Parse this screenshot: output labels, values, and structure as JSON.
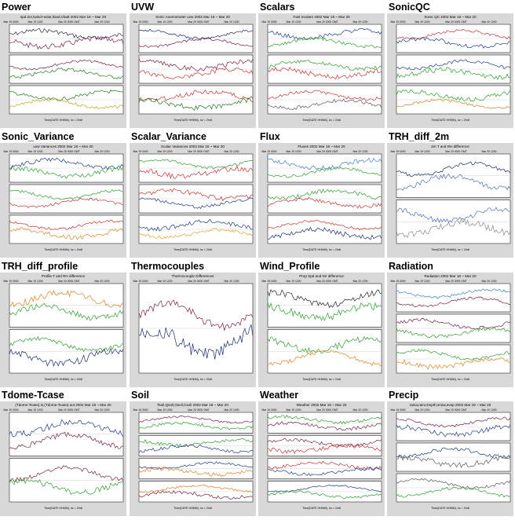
{
  "thumbnails": [
    {
      "label": "Power",
      "title": "spd.2m,twind+solar,Iload,Vbatt 2002 Mar 18 ~ Mar 20",
      "nplots": 3,
      "dates": [
        "Mar 19 0000",
        "Mar 19 1200",
        "Mar 20 0000 GMT",
        "Mar 20 1200"
      ],
      "xlabel": "Time(DATE HHMM), hz = 2hr8",
      "colors": [
        "#222244",
        "#7a1e4a",
        "#1a7a1a",
        "#c0a020"
      ]
    },
    {
      "label": "UVW",
      "title": "Sonic Anemometer uvw 2002 Mar 18 ~ Mar 20",
      "nplots": 3,
      "dates": [
        "Mar 19 0000",
        "Mar 19 1200",
        "Mar 20 0000 GMT",
        "Mar 20 1200"
      ],
      "xlabel": "Time(DATE HHMM), hz = 2hr8",
      "colors": [
        "#1a2a6a",
        "#7a1e4a",
        "#c83030",
        "#1a7a1a"
      ]
    },
    {
      "label": "Scalars",
      "title": "Fast Scalars 2002 Mar 18 ~ Mar 20",
      "nplots": 3,
      "dates": [
        "Mar 19 0000",
        "Mar 19 1200",
        "Mar 20 0000 GMT",
        "Mar 20 1200"
      ],
      "xlabel": "Time(DATE HHMM), hz = 2hr8",
      "colors": [
        "#1a3a8a",
        "#2aa02a",
        "#c83030",
        "#555555"
      ]
    },
    {
      "label": "SonicQC",
      "title": "Sonic QC 2002 Mar 18 ~ Mar 20",
      "nplots": 3,
      "dates": [
        "Mar 19 0000",
        "Mar 19 1200",
        "Mar 20 0000 GMT",
        "Mar 20 1200"
      ],
      "xlabel": "Time(DATE HHMM), hz = 2hr8",
      "colors": [
        "#c83030",
        "#1a3a8a",
        "#2aa02a",
        "#d08020"
      ]
    },
    {
      "label": "Sonic_Variance",
      "title": "uvw Variances 2002 Mar 18 ~ Mar 20",
      "nplots": 3,
      "dates": [
        "Mar 19 0000",
        "Mar 19 1200",
        "Mar 20 0000 GMT",
        "Mar 20 1200"
      ],
      "xlabel": "Time(DATE HHMM), hz = 2hr8",
      "colors": [
        "#1a3a8a",
        "#2aa02a",
        "#c83030",
        "#e08020"
      ]
    },
    {
      "label": "Scalar_Variance",
      "title": "Scalar Variances 2002 Mar 18 ~ Mar 20",
      "nplots": 3,
      "dates": [
        "Mar 19 0000",
        "Mar 19 1200",
        "Mar 20 0000 GMT",
        "Mar 20 1200"
      ],
      "xlabel": "Time(DATE HHMM), hz = 2hr8",
      "colors": [
        "#2aa02a",
        "#c83030",
        "#1a3a8a",
        "#e0a020"
      ]
    },
    {
      "label": "Flux",
      "title": "Fluxes 2002 Mar 18 ~ Mar 20",
      "nplots": 3,
      "dates": [
        "Mar 19 0000",
        "Mar 19 1200",
        "Mar 20 0000 GMT",
        "Mar 20 1200"
      ],
      "xlabel": "Time(DATE HHMM), hz = 2hr8",
      "colors": [
        "#3a80d0",
        "#2aa02a",
        "#c83030",
        "#1a2a6a"
      ]
    },
    {
      "label": "TRH_diff_2m",
      "title": "2m T and RH difference",
      "nplots": 2,
      "dates": [
        "Mar 19 0000",
        "Mar 19 1200",
        "Mar 20 0000 GMT",
        "Mar 20 1200"
      ],
      "xlabel": "Time(DATE HHMM), hz = 2hr8",
      "colors": [
        "#1a2a5a",
        "#4a70b0",
        "#888888",
        "#333333"
      ]
    },
    {
      "label": "TRH_diff_profile",
      "title": "Profile T and RH difference",
      "nplots": 2,
      "dates": [
        "Mar 19 0000",
        "Mar 19 1200",
        "Mar 20 0000 GMT",
        "Mar 20 1200"
      ],
      "xlabel": "Time(DATE HHMM), hz = 2hr8",
      "colors": [
        "#e08020",
        "#2aa02a",
        "#1a2a6a",
        "#c83030"
      ]
    },
    {
      "label": "Thermocouples",
      "title": "Thermocouple Differences",
      "nplots": 1,
      "dates": [
        "Mar 19 0000",
        "Mar 19 1200",
        "Mar 20 0000 GMT",
        "Mar 20 1200"
      ],
      "xlabel": "Time(DATE HHMM), hz = 2hr8",
      "colors": [
        "#7a1e4a",
        "#1a2a6a",
        "#c83030",
        "#2aa02a"
      ]
    },
    {
      "label": "Wind_Profile",
      "title": "Prop Spd and Dir difference",
      "nplots": 2,
      "dates": [
        "Mar 19 0000",
        "Mar 19 1200",
        "Mar 20 0000 GMT",
        "Mar 20 1200"
      ],
      "xlabel": "Time(DATE HHMM), hz = 2hr8",
      "colors": [
        "#222222",
        "#2aa02a",
        "#e08020",
        "#c83030"
      ]
    },
    {
      "label": "Radiation",
      "title": "Radiation 2002 Mar 18 ~ Mar 20",
      "nplots": 3,
      "dates": [
        "Mar 19 0000",
        "Mar 19 1200",
        "Mar 20 0000 GMT",
        "Mar 20 1200"
      ],
      "xlabel": "Time(DATE HHMM), hz = 2hr8",
      "colors": [
        "#3a80d0",
        "#7a1e4a",
        "#2aa02a",
        "#e08020"
      ]
    },
    {
      "label": "Tdome-Tcase",
      "title": "(Tdome-Tcase).in,(Tdome-Tcase).out 2002 Mar 18 ~ Mar 20",
      "nplots": 2,
      "dates": [
        "Mar 19 0000",
        "Mar 19 1200",
        "Mar 20 0000 GMT",
        "Mar 20 1200"
      ],
      "xlabel": "Time(DATE HHMM), hz = 2hr8",
      "colors": [
        "#1a3a8a",
        "#7a1e4a",
        "#2aa02a",
        "#c83030"
      ]
    },
    {
      "label": "Soil",
      "title": "Tsoil,Qsoil,Gsoil,Csoil 2002 Mar 18 ~ Mar 20",
      "nplots": 4,
      "dates": [
        "Mar 19 0000",
        "Mar 19 1200",
        "Mar 20 0000 GMT",
        "Mar 20 1200"
      ],
      "xlabel": "Time(DATE HHMM), hz = 2hr8",
      "colors": [
        "#7a1e4a",
        "#2aa02a",
        "#1a3a8a",
        "#e08020"
      ]
    },
    {
      "label": "Weather",
      "title": "Weather 2002 Mar 18 ~ Mar 20",
      "nplots": 4,
      "dates": [
        "Mar 19 0000",
        "Mar 19 1200",
        "Mar 20 0000 GMT",
        "Mar 20 1200"
      ],
      "xlabel": "Time(DATE HHMM), hz = 2hr8",
      "colors": [
        "#2aa02a",
        "#7a1e4a",
        "#c83030",
        "#1a3a8a"
      ]
    },
    {
      "label": "Precip",
      "title": "raina,rainr,Depth,snow,evap 2002 Mar 18 ~ Mar 20",
      "nplots": 3,
      "dates": [
        "Mar 19 0000",
        "Mar 19 1200",
        "Mar 20 0000 GMT",
        "Mar 20 1200"
      ],
      "xlabel": "Time(DATE HHMM), hz = 2hr8",
      "colors": [
        "#7a1e4a",
        "#1a3a8a",
        "#555555",
        "#2aa02a"
      ]
    }
  ]
}
